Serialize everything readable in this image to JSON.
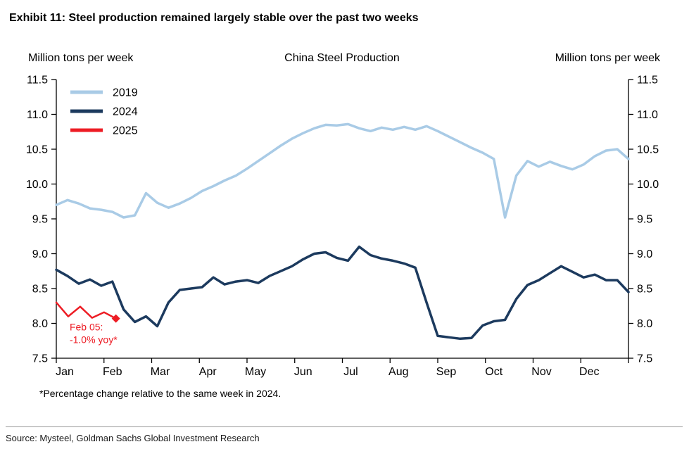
{
  "header": {
    "exhibit_title": "Exhibit 11: Steel production remained largely stable over the past two weeks"
  },
  "chart_data": {
    "type": "line",
    "title": "China Steel Production",
    "left_axis_label": "Million tons per week",
    "right_axis_label": "Million tons per week",
    "x_tick_labels": [
      "Jan",
      "Feb",
      "Mar",
      "Apr",
      "May",
      "Jun",
      "Jul",
      "Aug",
      "Sep",
      "Oct",
      "Nov",
      "Dec"
    ],
    "x_months_range": [
      0,
      12
    ],
    "ylim": [
      7.5,
      11.5
    ],
    "y_ticks": [
      7.5,
      8.0,
      8.5,
      9.0,
      9.5,
      10.0,
      10.5,
      11.0,
      11.5
    ],
    "grid": false,
    "legend_position": "top-left",
    "series": [
      {
        "name": "2019",
        "color": "#a9cbe6",
        "width": 3.5,
        "x_range": [
          0,
          12
        ],
        "values": [
          9.7,
          9.77,
          9.72,
          9.65,
          9.63,
          9.6,
          9.52,
          9.55,
          9.87,
          9.73,
          9.66,
          9.72,
          9.8,
          9.9,
          9.97,
          10.05,
          10.12,
          10.22,
          10.33,
          10.44,
          10.55,
          10.65,
          10.73,
          10.8,
          10.85,
          10.84,
          10.86,
          10.8,
          10.76,
          10.81,
          10.78,
          10.82,
          10.78,
          10.83,
          10.76,
          10.68,
          10.6,
          10.52,
          10.45,
          10.36,
          9.52,
          10.12,
          10.33,
          10.25,
          10.32,
          10.26,
          10.21,
          10.28,
          10.4,
          10.48,
          10.5,
          10.36
        ]
      },
      {
        "name": "2024",
        "color": "#1c3a5e",
        "width": 3.5,
        "x_range": [
          0,
          12
        ],
        "values": [
          8.77,
          8.68,
          8.57,
          8.63,
          8.54,
          8.6,
          8.2,
          8.02,
          8.1,
          7.96,
          8.3,
          8.48,
          8.5,
          8.52,
          8.66,
          8.56,
          8.6,
          8.62,
          8.58,
          8.68,
          8.75,
          8.82,
          8.92,
          9.0,
          9.02,
          8.94,
          8.9,
          9.1,
          8.98,
          8.93,
          8.9,
          8.86,
          8.8,
          8.3,
          7.82,
          7.8,
          7.78,
          7.79,
          7.97,
          8.03,
          8.05,
          8.35,
          8.55,
          8.62,
          8.72,
          8.82,
          8.74,
          8.66,
          8.7,
          8.62,
          8.62,
          8.45
        ]
      },
      {
        "name": "2025",
        "color": "#ed1c24",
        "width": 2.5,
        "x_range": [
          0,
          1.25
        ],
        "end_marker": "diamond",
        "values": [
          8.3,
          8.1,
          8.24,
          8.08,
          8.16,
          8.07
        ]
      }
    ],
    "annotation": {
      "lines": [
        "Feb 05:",
        "-1.0% yoy*"
      ],
      "color": "#ed1c24",
      "x_month": 0.28,
      "y_value": 7.9
    }
  },
  "footer": {
    "footnote": "*Percentage change relative to the same week in 2024.",
    "source": "Source: Mysteel, Goldman Sachs Global Investment Research"
  }
}
